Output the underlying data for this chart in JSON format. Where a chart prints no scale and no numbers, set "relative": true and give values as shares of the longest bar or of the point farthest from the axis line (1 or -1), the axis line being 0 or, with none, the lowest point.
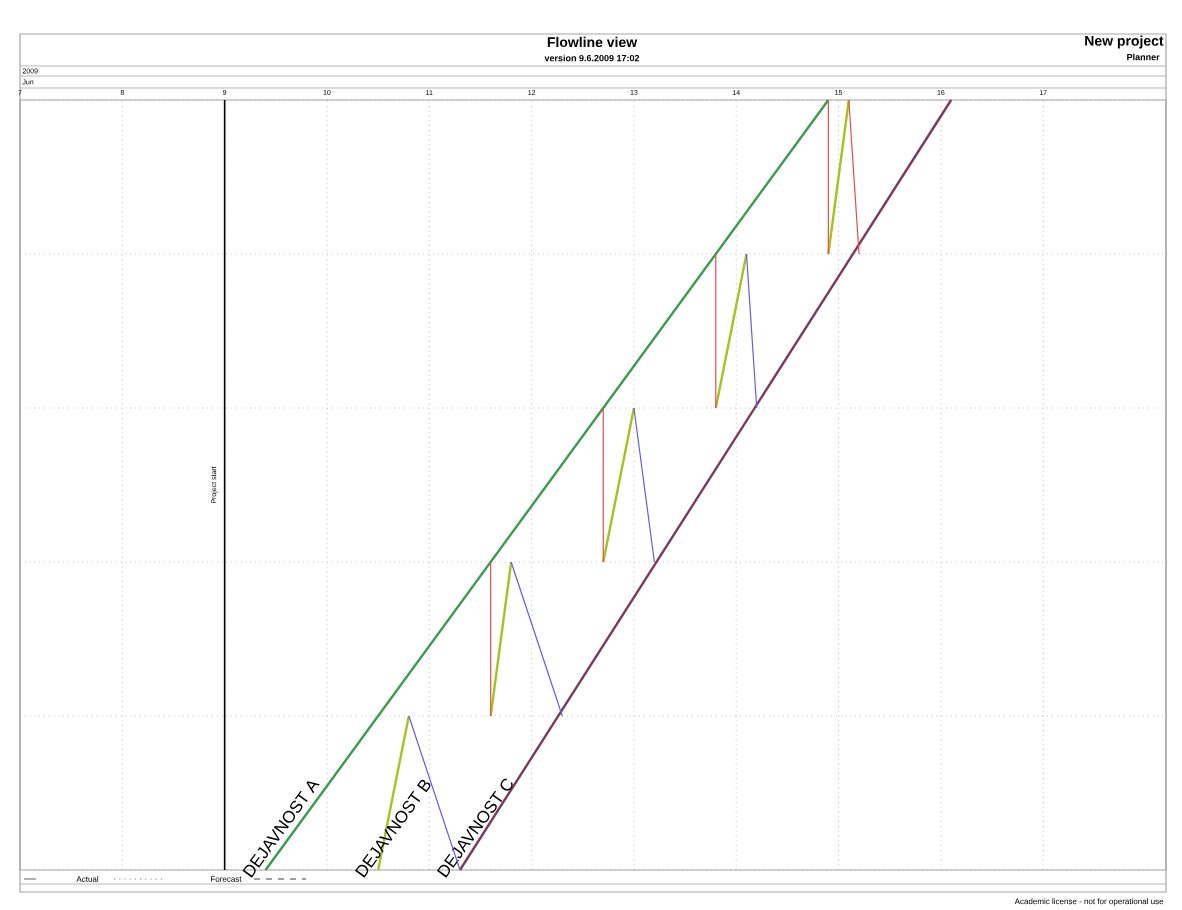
{
  "chart_data": {
    "type": "line",
    "title": "Flowline view",
    "subtitle": "version 9.6.2009 17:02",
    "relative": true,
    "grid": true,
    "xlim": [
      7,
      18.2
    ],
    "xticks": [
      7,
      8,
      9,
      10,
      11,
      12,
      13,
      14,
      15,
      16,
      17
    ],
    "series": [
      {
        "name": "DEJAVNOST A",
        "color": "#3c9a50",
        "x": [
          9.4,
          14.9
        ],
        "values": [
          0,
          1
        ]
      },
      {
        "name": "DEJAVNOST B",
        "color": "#a8c020",
        "x": [
          10.5,
          10.8,
          null,
          11.6,
          11.8,
          null,
          12.7,
          13.0,
          null,
          13.8,
          14.1,
          null,
          14.9,
          15.1
        ],
        "values": [
          0,
          0.2,
          null,
          0.2,
          0.4,
          null,
          0.4,
          0.6,
          null,
          0.6,
          0.8,
          null,
          0.8,
          1
        ]
      },
      {
        "name": "DEJAVNOST C",
        "color": "#7a3a5a",
        "x": [
          11.3,
          16.1
        ],
        "values": [
          0,
          1
        ]
      },
      {
        "color": "#e05050",
        "x": [
          11.6,
          11.6,
          null,
          12.7,
          12.7,
          null,
          13.8,
          13.8,
          null,
          14.9,
          14.9,
          null,
          15.1,
          15.2
        ],
        "values": [
          0.4,
          0.2,
          null,
          0.6,
          0.4,
          null,
          0.8,
          0.6,
          null,
          1,
          0.8,
          null,
          1,
          0.8
        ]
      },
      {
        "color": "#6060e0",
        "x": [
          10.8,
          11.3,
          null,
          11.8,
          12.3,
          null,
          13.0,
          13.2,
          null,
          14.1,
          14.2
        ],
        "values": [
          0.2,
          0,
          null,
          0.4,
          0.2,
          null,
          0.6,
          0.4,
          null,
          0.8,
          0.6
        ]
      }
    ],
    "ref_lines": [
      {
        "axis": "x",
        "value": 9,
        "label": "Project start",
        "color": "#000000"
      }
    ],
    "annotations": [
      "New project",
      "Planner",
      "2009",
      "Jun",
      "Actual",
      "Forecast",
      "Academic license - not for operational use"
    ]
  }
}
